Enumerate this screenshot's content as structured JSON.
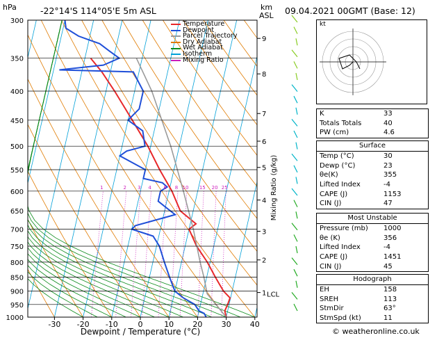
{
  "header": {
    "p_unit": "hPa",
    "location": "-22°14'S  114°05'E  5m  ASL",
    "km_unit": "km",
    "asl": "ASL",
    "date": "09.04.2021  00GMT  (Base: 12)"
  },
  "chart_data": {
    "type": "line",
    "xlabel": "Dewpoint / Temperature (°C)",
    "ylabel_left": "hPa",
    "ylabel_right": "Mixing Ratio (g/kg)",
    "x_ticks": [
      -30,
      -20,
      -10,
      0,
      10,
      20,
      30,
      40
    ],
    "p_levels": [
      300,
      350,
      400,
      450,
      500,
      550,
      600,
      650,
      700,
      750,
      800,
      850,
      900,
      950,
      1000
    ],
    "km_ticks": [
      {
        "p": 373,
        "label": "8"
      },
      {
        "p": 438,
        "label": "7"
      },
      {
        "p": 490,
        "label": "6"
      },
      {
        "p": 545,
        "label": "5"
      },
      {
        "p": 622,
        "label": "4"
      },
      {
        "p": 706,
        "label": "3"
      },
      {
        "p": 793,
        "label": "2"
      },
      {
        "p": 905,
        "label": "1"
      },
      {
        "p": 323,
        "label": "9"
      }
    ],
    "lcl_label": "LCL",
    "lcl_p": 910,
    "mixing_ratio_labels": [
      "1",
      "2",
      "3",
      "4",
      "6",
      "8",
      "10",
      "15",
      "20",
      "25"
    ],
    "series": [
      {
        "name": "Temperature",
        "p": [
          1000,
          975,
          950,
          925,
          900,
          875,
          850,
          800,
          750,
          700,
          685,
          650,
          600,
          550,
          500,
          450,
          400,
          370,
          350
        ],
        "t": [
          30,
          29,
          29.5,
          29.8,
          27,
          25,
          23,
          19,
          14,
          10,
          12,
          5.5,
          1,
          -5,
          -11,
          -18.5,
          -27,
          -33,
          -38
        ]
      },
      {
        "name": "Dewpoint",
        "p": [
          1000,
          985,
          975,
          950,
          925,
          900,
          850,
          800,
          750,
          720,
          700,
          690,
          660,
          640,
          625,
          600,
          590,
          580,
          570,
          550,
          520,
          510,
          500,
          470,
          450,
          430,
          400,
          370,
          367,
          360,
          350,
          340,
          330,
          320,
          310,
          300
        ],
        "t": [
          23,
          22,
          20,
          18,
          13.5,
          10,
          7,
          4,
          1,
          -2,
          -10,
          -9,
          4,
          0,
          -3,
          -3,
          -1,
          -3,
          -10,
          -10,
          -20,
          -18,
          -12,
          -14,
          -20,
          -17,
          -17,
          -22,
          -48,
          -33,
          -28,
          -32,
          -36,
          -44,
          -49,
          -50
        ]
      },
      {
        "name": "Parcel Trajectory",
        "p": [
          1000,
          910,
          850,
          800,
          700,
          600,
          500,
          400,
          350
        ],
        "t": [
          30,
          21.5,
          19,
          16.5,
          11.5,
          5,
          -3,
          -14,
          -22
        ]
      }
    ],
    "legend": [
      "Temperature",
      "Dewpoint",
      "Parcel Trajectory",
      "Dry Adiabat",
      "Wet Adiabat",
      "Isotherm",
      "Mixing Ratio"
    ],
    "colors": {
      "temperature": "#e8282a",
      "dewpoint": "#1f4fd8",
      "parcel": "#9a9a9a",
      "dry_adiabat": "#e07b00",
      "wet_adiabat": "#0a8a1a",
      "isotherm": "#00a0d8",
      "mixing_ratio": "#cc1dbb"
    }
  },
  "hodograph": {
    "label": "kt",
    "u": [
      0,
      -1,
      -3,
      -4,
      -1,
      1,
      2
    ],
    "v": [
      0,
      -1,
      -2,
      1,
      2,
      0,
      -2
    ]
  },
  "indices": [
    {
      "k": "K",
      "v": "33"
    },
    {
      "k": "Totals Totals",
      "v": "40"
    },
    {
      "k": "PW (cm)",
      "v": "4.6"
    }
  ],
  "surface": {
    "title": "Surface",
    "rows": [
      {
        "k": "Temp (°C)",
        "v": "30"
      },
      {
        "k": "Dewp (°C)",
        "v": "23"
      },
      {
        "k": "θe(K)",
        "v": "355"
      },
      {
        "k": "Lifted Index",
        "v": "-4"
      },
      {
        "k": "CAPE (J)",
        "v": "1153"
      },
      {
        "k": "CIN (J)",
        "v": "47"
      }
    ]
  },
  "most_unstable": {
    "title": "Most Unstable",
    "rows": [
      {
        "k": "Pressure (mb)",
        "v": "1000"
      },
      {
        "k": "θe (K)",
        "v": "356"
      },
      {
        "k": "Lifted Index",
        "v": "-4"
      },
      {
        "k": "CAPE (J)",
        "v": "1451"
      },
      {
        "k": "CIN (J)",
        "v": "45"
      }
    ]
  },
  "hodograph_table": {
    "title": "Hodograph",
    "rows": [
      {
        "k": "EH",
        "v": "158"
      },
      {
        "k": "SREH",
        "v": "113"
      },
      {
        "k": "StmDir",
        "v": "63°"
      },
      {
        "k": "StmSpd (kt)",
        "v": "11"
      }
    ]
  },
  "footer": "© weatheronline.co.uk"
}
